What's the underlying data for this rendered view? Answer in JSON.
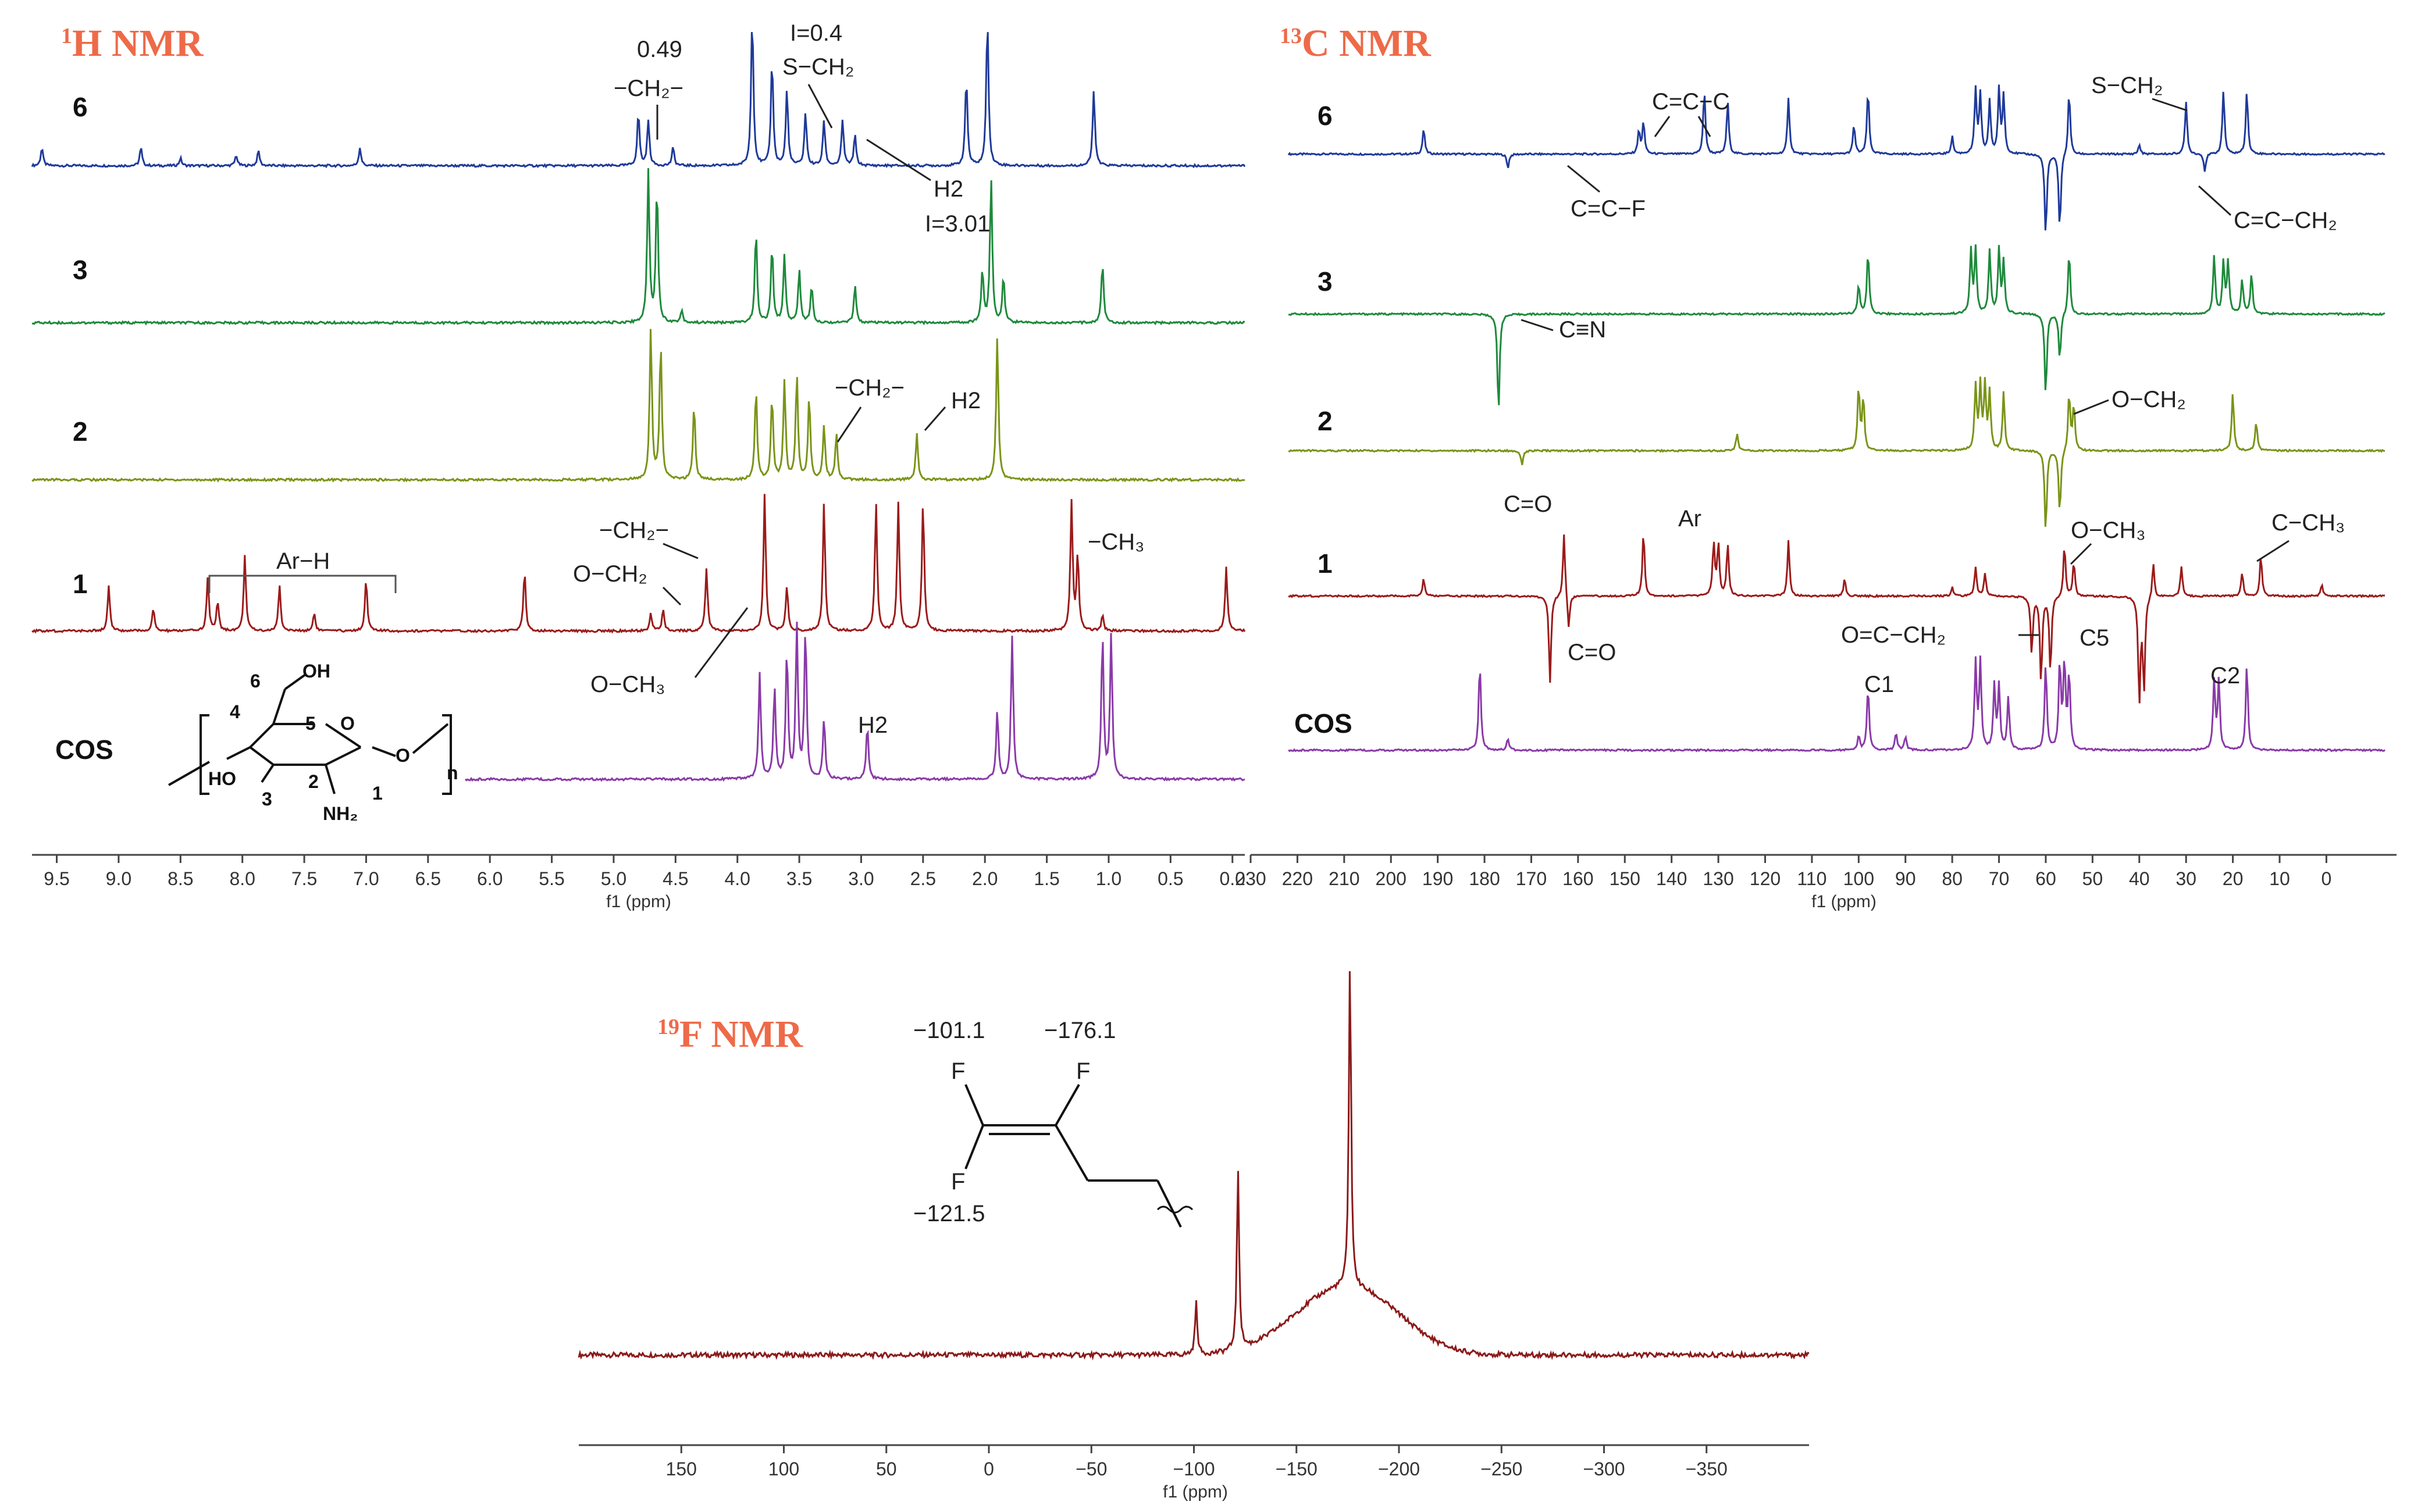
{
  "colors": {
    "title": "#ee6a48",
    "s6": "#1f3a9a",
    "s3": "#1e8a3c",
    "s2": "#7a9418",
    "s1": "#9b1b1b",
    "cos": "#8a3aa8",
    "f": "#8b1a1a"
  },
  "chart_data": [
    {
      "type": "line",
      "panel": "h",
      "title": "H NMR",
      "title_sup": "1",
      "xlabel": "f1 (ppm)",
      "xlim": [
        9.7,
        -0.1
      ],
      "ticks": [
        "9.5",
        "9.0",
        "8.5",
        "8.0",
        "7.5",
        "7.0",
        "6.5",
        "6.0",
        "5.5",
        "5.0",
        "4.5",
        "4.0",
        "3.5",
        "3.0",
        "2.5",
        "2.0",
        "1.5",
        "1.0",
        "0.5",
        "0.0"
      ],
      "tick_values": [
        9.5,
        9.0,
        8.5,
        8.0,
        7.5,
        7.0,
        6.5,
        6.0,
        5.5,
        5.0,
        4.5,
        4.0,
        3.5,
        3.0,
        2.5,
        2.0,
        1.5,
        1.0,
        0.5,
        0.0
      ],
      "series": [
        {
          "name": "6",
          "color": "#1f3a9a",
          "xrange": [
            9.7,
            -0.1
          ],
          "peaks": [
            [
              9.62,
              0.12
            ],
            [
              8.82,
              0.12
            ],
            [
              8.5,
              0.05
            ],
            [
              8.05,
              0.07
            ],
            [
              7.87,
              0.1
            ],
            [
              7.05,
              0.12
            ],
            [
              4.8,
              0.35
            ],
            [
              4.72,
              0.3
            ],
            [
              4.52,
              0.12
            ],
            [
              3.88,
              1.0
            ],
            [
              3.72,
              0.7
            ],
            [
              3.6,
              0.5
            ],
            [
              3.45,
              0.35
            ],
            [
              3.3,
              0.3
            ],
            [
              3.15,
              0.3
            ],
            [
              3.05,
              0.2
            ],
            [
              2.15,
              0.58
            ],
            [
              1.98,
              0.98
            ],
            [
              1.12,
              0.5
            ]
          ]
        },
        {
          "name": "3",
          "color": "#1e8a3c",
          "xrange": [
            9.7,
            -0.1
          ],
          "peaks": [
            [
              4.72,
              1.0
            ],
            [
              4.65,
              0.9
            ],
            [
              4.45,
              0.08
            ],
            [
              3.85,
              0.6
            ],
            [
              3.72,
              0.5
            ],
            [
              3.62,
              0.45
            ],
            [
              3.5,
              0.35
            ],
            [
              3.4,
              0.25
            ],
            [
              3.05,
              0.25
            ],
            [
              2.02,
              0.35
            ],
            [
              1.95,
              0.95
            ],
            [
              1.85,
              0.3
            ],
            [
              1.05,
              0.4
            ]
          ]
        },
        {
          "name": "2",
          "color": "#7a9418",
          "xrange": [
            9.7,
            -0.1
          ],
          "peaks": [
            [
              4.7,
              1.0
            ],
            [
              4.62,
              0.9
            ],
            [
              4.35,
              0.5
            ],
            [
              3.85,
              0.6
            ],
            [
              3.72,
              0.55
            ],
            [
              3.62,
              0.65
            ],
            [
              3.52,
              0.7
            ],
            [
              3.42,
              0.55
            ],
            [
              3.3,
              0.35
            ],
            [
              3.2,
              0.3
            ],
            [
              2.55,
              0.3
            ],
            [
              1.9,
              0.95
            ]
          ]
        },
        {
          "name": "1",
          "color": "#9b1b1b",
          "xrange": [
            9.7,
            -0.1
          ],
          "peaks": [
            [
              9.08,
              0.3
            ],
            [
              8.72,
              0.15
            ],
            [
              8.28,
              0.35
            ],
            [
              8.2,
              0.2
            ],
            [
              7.98,
              0.5
            ],
            [
              7.7,
              0.3
            ],
            [
              7.42,
              0.12
            ],
            [
              7.0,
              0.35
            ],
            [
              5.72,
              0.4
            ],
            [
              4.7,
              0.12
            ],
            [
              4.6,
              0.14
            ],
            [
              4.25,
              0.42
            ],
            [
              3.78,
              0.9
            ],
            [
              3.6,
              0.3
            ],
            [
              3.3,
              0.85
            ],
            [
              2.88,
              0.85
            ],
            [
              2.7,
              0.85
            ],
            [
              2.5,
              0.85
            ],
            [
              1.3,
              0.85
            ],
            [
              1.25,
              0.5
            ],
            [
              1.05,
              0.1
            ],
            [
              0.05,
              0.42
            ]
          ]
        },
        {
          "name": "COS",
          "color": "#8a3aa8",
          "xrange": [
            6.0,
            -0.1
          ],
          "peaks": [
            [
              3.82,
              0.7
            ],
            [
              3.7,
              0.6
            ],
            [
              3.6,
              0.85
            ],
            [
              3.52,
              1.0
            ],
            [
              3.45,
              1.0
            ],
            [
              3.3,
              0.4
            ],
            [
              2.95,
              0.35
            ],
            [
              1.9,
              0.45
            ],
            [
              1.78,
              0.95
            ],
            [
              1.05,
              0.95
            ],
            [
              0.98,
              0.95
            ]
          ]
        }
      ],
      "labels": {
        "val_049": "0.49",
        "ch2_top": "−CH₂−",
        "i04": "I=0.4",
        "sch2": "S−CH₂",
        "h2": "H2",
        "i301": "I=3.01",
        "ch2_2": "−CH₂−",
        "h2_2": "H2",
        "arh": "Ar−H",
        "ch2_1": "−CH₂−",
        "och2_1": "O−CH₂",
        "ch3_1": "−CH₃",
        "och3_1": "O−CH₃",
        "h2_cos": "H2",
        "n_sub": "n"
      },
      "structure": {
        "c6": "6",
        "oh": "OH",
        "c4": "4",
        "c5": "5",
        "o_ring": "O",
        "ho": "HO",
        "c3": "3",
        "c2": "2",
        "c1": "1",
        "nh2": "NH₂",
        "o_link": "O"
      }
    },
    {
      "type": "line",
      "panel": "c",
      "title": "C NMR",
      "title_sup": "13",
      "xlabel": "f1 (ppm)",
      "xlim": [
        230,
        -15
      ],
      "ticks": [
        "230",
        "220",
        "210",
        "200",
        "190",
        "180",
        "170",
        "160",
        "150",
        "140",
        "130",
        "120",
        "110",
        "100",
        "90",
        "80",
        "70",
        "60",
        "50",
        "40",
        "30",
        "20",
        "10",
        "0"
      ],
      "tick_values": [
        230,
        220,
        210,
        200,
        190,
        180,
        170,
        160,
        150,
        140,
        130,
        120,
        110,
        100,
        90,
        80,
        70,
        60,
        50,
        40,
        30,
        20,
        10,
        0
      ],
      "series": [
        {
          "name": "6",
          "color": "#1f3a9a",
          "xrange": [
            235,
            -15
          ],
          "peaks": [
            [
              193,
              0.22
            ],
            [
              175,
              -0.12
            ],
            [
              147,
              0.2
            ],
            [
              146,
              0.28
            ],
            [
              133,
              0.55
            ],
            [
              128,
              0.45
            ],
            [
              115,
              0.48
            ],
            [
              101,
              0.25
            ],
            [
              98,
              0.55
            ],
            [
              80,
              0.15
            ],
            [
              75,
              0.55
            ],
            [
              74,
              0.5
            ],
            [
              72,
              0.45
            ],
            [
              70,
              0.55
            ],
            [
              69,
              0.5
            ],
            [
              60,
              -0.7
            ],
            [
              57,
              -0.65
            ],
            [
              55,
              0.55
            ],
            [
              40,
              0.08
            ],
            [
              30,
              0.45
            ],
            [
              26,
              -0.15
            ],
            [
              22,
              0.55
            ],
            [
              17,
              0.55
            ]
          ]
        },
        {
          "name": "3",
          "color": "#1e8a3c",
          "xrange": [
            235,
            -15
          ],
          "peaks": [
            [
              177,
              -0.85
            ],
            [
              100,
              0.25
            ],
            [
              98,
              0.55
            ],
            [
              76,
              0.55
            ],
            [
              75,
              0.55
            ],
            [
              72,
              0.55
            ],
            [
              70,
              0.55
            ],
            [
              69,
              0.45
            ],
            [
              60,
              -0.7
            ],
            [
              57,
              -0.4
            ],
            [
              55,
              0.55
            ],
            [
              24,
              0.5
            ],
            [
              22,
              0.45
            ],
            [
              21,
              0.45
            ],
            [
              18,
              0.3
            ],
            [
              16,
              0.35
            ]
          ]
        },
        {
          "name": "2",
          "color": "#7a9418",
          "xrange": [
            235,
            -15
          ],
          "peaks": [
            [
              172,
              -0.12
            ],
            [
              126,
              0.15
            ],
            [
              100,
              0.55
            ],
            [
              99,
              0.45
            ],
            [
              75,
              0.55
            ],
            [
              74,
              0.55
            ],
            [
              73,
              0.55
            ],
            [
              72,
              0.5
            ],
            [
              69,
              0.5
            ],
            [
              60,
              -0.7
            ],
            [
              57,
              -0.55
            ],
            [
              55,
              0.5
            ],
            [
              54,
              0.4
            ],
            [
              20,
              0.5
            ],
            [
              15,
              0.25
            ]
          ]
        },
        {
          "name": "1",
          "color": "#9b1b1b",
          "xrange": [
            235,
            -15
          ],
          "peaks": [
            [
              193,
              0.15
            ],
            [
              166,
              -0.75
            ],
            [
              163,
              0.55
            ],
            [
              162,
              -0.3
            ],
            [
              146,
              0.55
            ],
            [
              131,
              0.45
            ],
            [
              130,
              0.45
            ],
            [
              128,
              0.45
            ],
            [
              115,
              0.48
            ],
            [
              103,
              0.15
            ],
            [
              80,
              0.08
            ],
            [
              75,
              0.25
            ],
            [
              73,
              0.2
            ],
            [
              63,
              -0.5
            ],
            [
              61,
              -0.75
            ],
            [
              59,
              -0.65
            ],
            [
              56,
              0.45
            ],
            [
              54,
              0.3
            ],
            [
              40,
              -0.9
            ],
            [
              39,
              -0.8
            ],
            [
              37,
              0.3
            ],
            [
              31,
              0.25
            ],
            [
              18,
              0.2
            ],
            [
              14,
              0.35
            ],
            [
              1,
              0.1
            ]
          ]
        },
        {
          "name": "COS",
          "color": "#8a3aa8",
          "xrange": [
            235,
            -15
          ],
          "peaks": [
            [
              181,
              0.75
            ],
            [
              175,
              0.1
            ],
            [
              100,
              0.12
            ],
            [
              98,
              0.55
            ],
            [
              92,
              0.15
            ],
            [
              90,
              0.12
            ],
            [
              75,
              0.75
            ],
            [
              74,
              0.75
            ],
            [
              71,
              0.55
            ],
            [
              70,
              0.55
            ],
            [
              68,
              0.45
            ],
            [
              60,
              0.75
            ],
            [
              57,
              0.75
            ],
            [
              56,
              0.75
            ],
            [
              55,
              0.65
            ],
            [
              24,
              0.6
            ],
            [
              23,
              0.6
            ],
            [
              17,
              0.75
            ]
          ]
        }
      ],
      "labels": {
        "ccc": "C=C−C",
        "sch2": "S−CH₂",
        "ccf": "C=C−F",
        "ccch2": "C=C−CH₂",
        "cn": "C≡N",
        "och2": "O−CH₂",
        "co_2": "C=O",
        "ar": "Ar",
        "och3": "O−CH₃",
        "cch3": "C−CH₃",
        "co_1": "C=O",
        "occh2": "O=C−CH₂",
        "c5": "C5",
        "c1": "C1",
        "c2": "C2"
      }
    },
    {
      "type": "line",
      "panel": "f",
      "title": "F NMR",
      "title_sup": "19",
      "xlabel": "f1 (ppm)",
      "xlim": [
        200,
        -400
      ],
      "ticks": [
        "150",
        "100",
        "50",
        "0",
        "−50",
        "−100",
        "−150",
        "−200",
        "−250",
        "−300",
        "−350"
      ],
      "tick_values": [
        150,
        100,
        50,
        0,
        -50,
        -100,
        -150,
        -200,
        -250,
        -300,
        -350
      ],
      "series": [
        {
          "name": "F",
          "color": "#8b1a1a",
          "xrange": [
            200,
            -400
          ],
          "peaks": [
            [
              -101.1,
              0.16
            ],
            [
              -121.5,
              0.55
            ],
            [
              -176.1,
              1.0
            ]
          ],
          "hump": [
            [
              -165,
              0.15,
              30
            ],
            [
              -190,
              0.1,
              28
            ]
          ]
        }
      ],
      "labels": {
        "s1011": "−101.1",
        "s1761": "−176.1",
        "s1215": "−121.5",
        "f1": "F",
        "f2": "F",
        "f3": "F"
      }
    }
  ]
}
